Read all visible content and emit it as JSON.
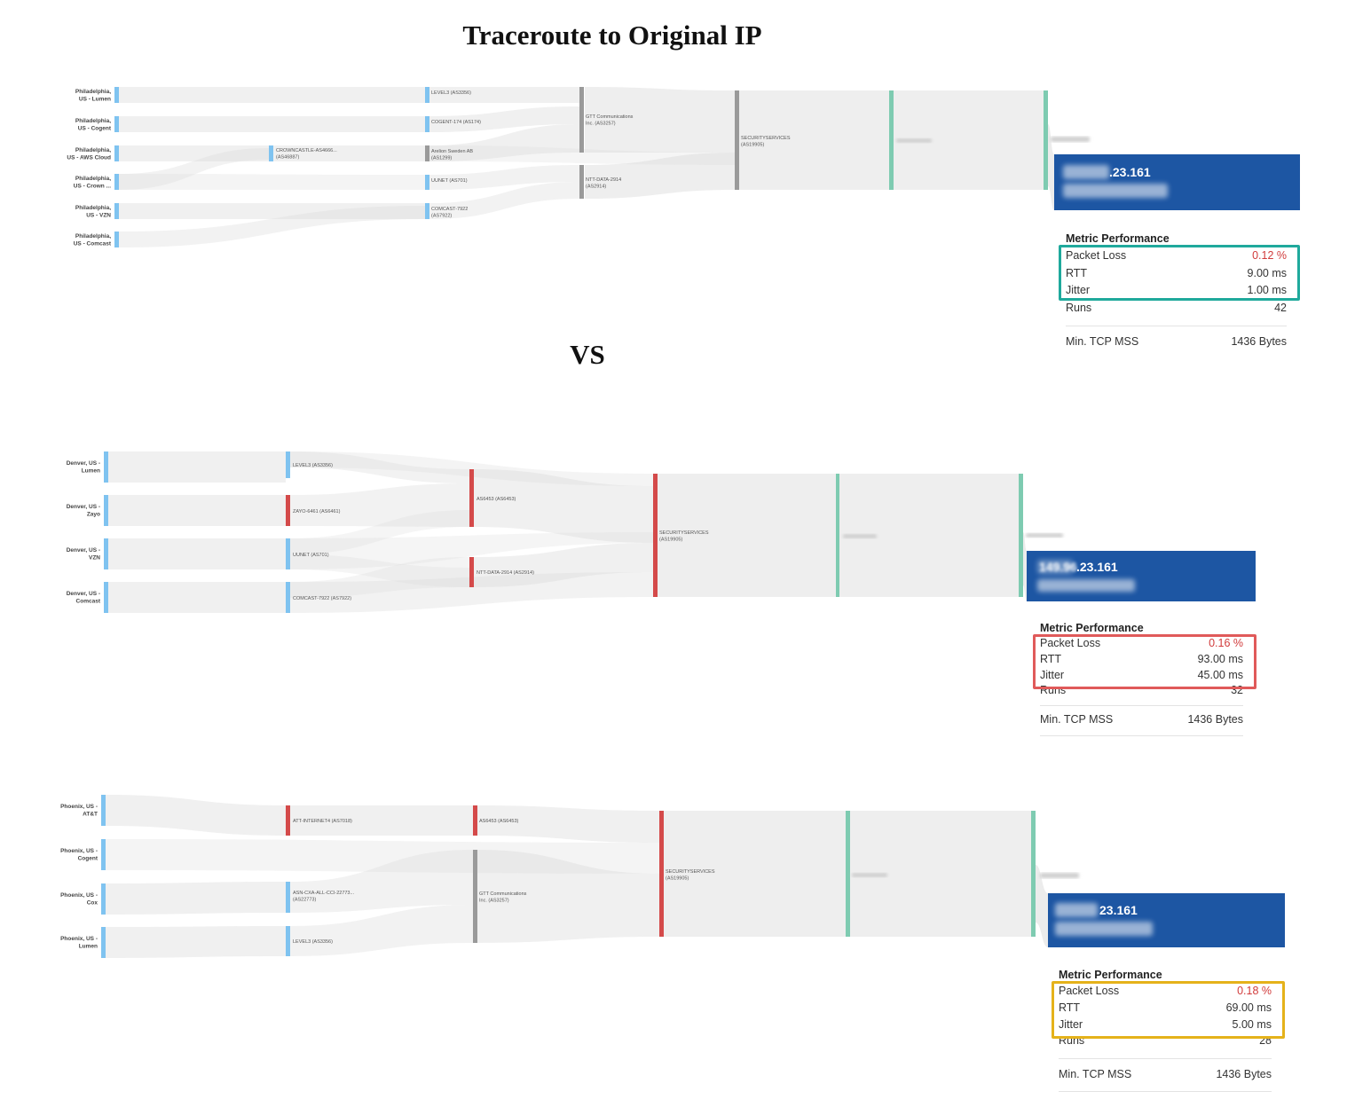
{
  "title": "Traceroute to Original IP",
  "vs": "VS",
  "colors": {
    "blue_node": "#7fc3f0",
    "red_node": "#d44a4a",
    "grey_node": "#9a9a9a",
    "green_node": "#7ecbb1",
    "dest_bg": "#1d56a3",
    "loss_red": "#d13b3b",
    "box_teal": "#1fa99c",
    "box_red": "#e05a5a",
    "box_yellow": "#e5b21a"
  },
  "panels": [
    {
      "sources": [
        [
          "Philadelphia,",
          "US - Lumen"
        ],
        [
          "Philadelphia,",
          "US - Cogent"
        ],
        [
          "Philadelphia,",
          "US - AWS Cloud"
        ],
        [
          "Philadelphia,",
          "US - Crown ..."
        ],
        [
          "Philadelphia,",
          "US - VZN"
        ],
        [
          "Philadelphia,",
          "US - Comcast"
        ]
      ],
      "hops": [
        [
          "CROWNCASTLE-AS4666...",
          "(AS46887)"
        ],
        [
          "LEVEL3 (AS3356)"
        ],
        [
          "COGENT-174 (AS174)"
        ],
        [
          "Arelion Sweden AB",
          "(AS1299)"
        ],
        [
          "UUNET (AS701)"
        ],
        [
          "COMCAST-7922",
          "(AS7922)"
        ],
        [
          "GTT Communications",
          "Inc. (AS3257)"
        ],
        [
          "NTT-DATA-2914",
          "(AS2914)"
        ],
        [
          "SECURITYSERVICES",
          "(AS19905)"
        ]
      ],
      "dest_ip": ".23.161",
      "metrics": {
        "title": "Metric Performance",
        "packet_loss_label": "Packet Loss",
        "packet_loss": "0.12 %",
        "rtt_label": "RTT",
        "rtt": "9.00 ms",
        "jitter_label": "Jitter",
        "jitter": "1.00 ms",
        "runs_label": "Runs",
        "runs": "42",
        "mss_label": "Min. TCP MSS",
        "mss": "1436 Bytes"
      }
    },
    {
      "sources": [
        [
          "Denver, US -",
          "Lumen"
        ],
        [
          "Denver, US -",
          "Zayo"
        ],
        [
          "Denver, US -",
          "VZN"
        ],
        [
          "Denver, US -",
          "Comcast"
        ]
      ],
      "hops": [
        [
          "LEVEL3 (AS3356)"
        ],
        [
          "ZAYO-6461 (AS6461)"
        ],
        [
          "UUNET (AS701)"
        ],
        [
          "COMCAST-7922 (AS7922)"
        ],
        [
          "AS6453 (AS6453)"
        ],
        [
          "NTT-DATA-2914 (AS2914)"
        ],
        [
          "SECURITYSERVICES",
          "(AS19905)"
        ]
      ],
      "dest_ip_prefix": "149.96",
      "dest_ip": ".23.161",
      "metrics": {
        "title": "Metric Performance",
        "packet_loss_label": "Packet Loss",
        "packet_loss": "0.16 %",
        "rtt_label": "RTT",
        "rtt": "93.00 ms",
        "jitter_label": "Jitter",
        "jitter": "45.00 ms",
        "runs_label": "Runs",
        "runs": "32",
        "mss_label": "Min. TCP MSS",
        "mss": "1436 Bytes"
      }
    },
    {
      "sources": [
        [
          "Phoenix, US -",
          "AT&T"
        ],
        [
          "Phoenix, US -",
          "Cogent"
        ],
        [
          "Phoenix, US -",
          "Cox"
        ],
        [
          "Phoenix, US -",
          "Lumen"
        ]
      ],
      "hops": [
        [
          "ATT-INTERNET4 (AS7018)"
        ],
        [
          "ASN-CXA-ALL-CCI-22773...",
          "(AS22773)"
        ],
        [
          "LEVEL3 (AS3356)"
        ],
        [
          "AS6453 (AS6453)"
        ],
        [
          "GTT Communications",
          "Inc. (AS3257)"
        ],
        [
          "SECURITYSERVICES",
          "(AS19905)"
        ]
      ],
      "dest_ip": "23.161",
      "metrics": {
        "title": "Metric Performance",
        "packet_loss_label": "Packet Loss",
        "packet_loss": "0.18 %",
        "rtt_label": "RTT",
        "rtt": "69.00 ms",
        "jitter_label": "Jitter",
        "jitter": "5.00 ms",
        "runs_label": "Runs",
        "runs": "28",
        "mss_label": "Min. TCP MSS",
        "mss": "1436 Bytes"
      }
    }
  ]
}
